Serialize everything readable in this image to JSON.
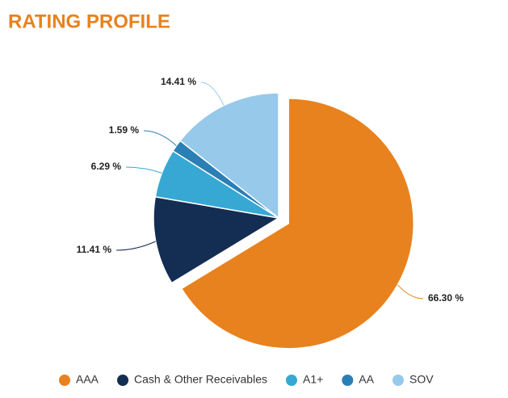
{
  "chart_data": {
    "type": "pie",
    "title": "RATING PROFILE",
    "categories": [
      "AAA",
      "Cash & Other Receivables",
      "A1+",
      "AA",
      "SOV"
    ],
    "values": [
      66.3,
      11.41,
      6.29,
      1.59,
      14.41
    ],
    "value_labels": [
      "66.30 %",
      "11.41 %",
      "6.29 %",
      "1.59 %",
      "14.41 %"
    ],
    "colors": [
      "#e8821e",
      "#142d52",
      "#37a8d3",
      "#2a7fb5",
      "#97c9ea"
    ],
    "legend": "bottom"
  }
}
